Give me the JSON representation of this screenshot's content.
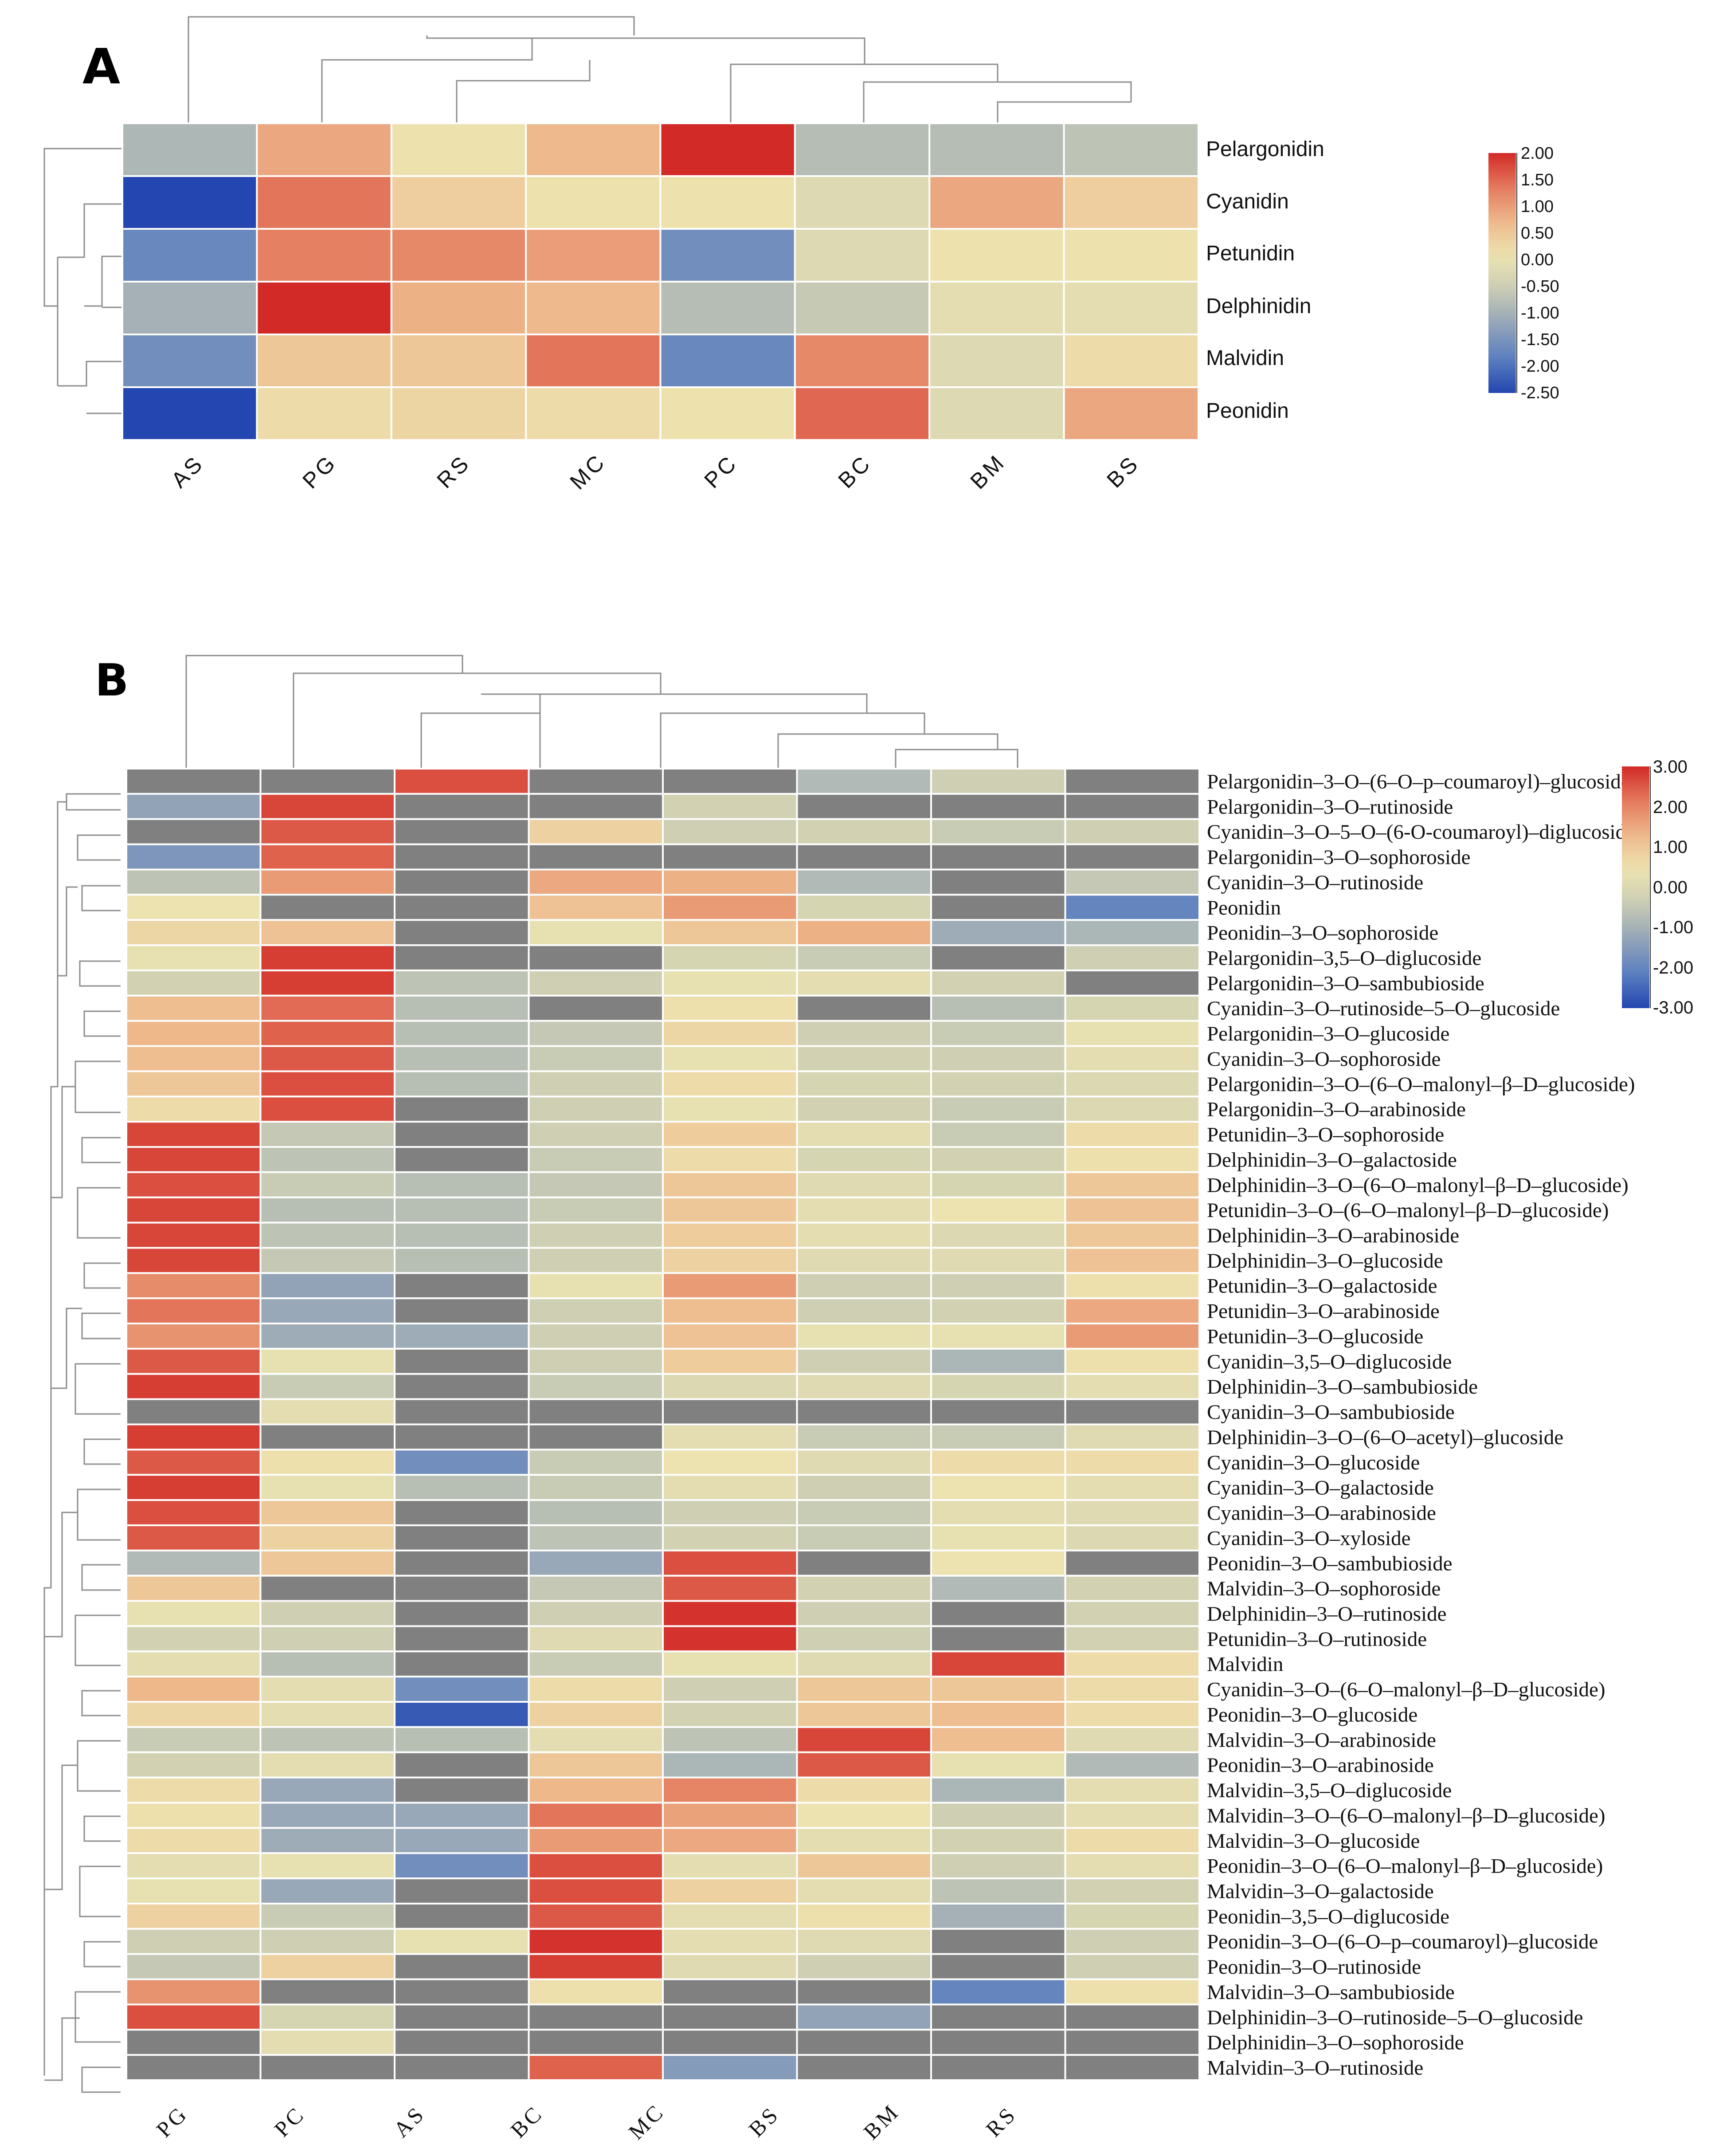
{
  "colors": {
    "missing": "#808080",
    "scale": [
      "#2346b0",
      "#5b7fbf",
      "#93a4b8",
      "#c8cbb4",
      "#ede4b0",
      "#eeb98c",
      "#e47a5e",
      "#d22a26"
    ]
  },
  "chart_data": [
    {
      "type": "heatmap",
      "panel": "A",
      "columns": [
        "AS",
        "PG",
        "RS",
        "MC",
        "PC",
        "BC",
        "BM",
        "BS"
      ],
      "rows": [
        "Pelargonidin",
        "Cyanidin",
        "Petunidin",
        "Delphinidin",
        "Malvidin",
        "Peonidin"
      ],
      "values": [
        [
          -0.9,
          0.9,
          0.1,
          0.7,
          2.0,
          -0.8,
          -0.8,
          -0.7
        ],
        [
          -2.5,
          1.4,
          0.4,
          0.1,
          0.1,
          -0.2,
          0.9,
          0.4
        ],
        [
          -1.7,
          1.3,
          1.2,
          1.0,
          -1.6,
          -0.2,
          0.1,
          0.1
        ],
        [
          -1.0,
          2.0,
          0.8,
          0.7,
          -0.8,
          -0.6,
          -0.1,
          -0.1
        ],
        [
          -1.6,
          0.5,
          0.5,
          1.4,
          -1.7,
          1.2,
          -0.2,
          0.2
        ],
        [
          -2.5,
          0.2,
          0.3,
          0.2,
          0.1,
          1.5,
          -0.2,
          0.9
        ]
      ],
      "colorbar": {
        "range": [
          -2.5,
          2.0
        ],
        "ticks": [
          "2.00",
          "1.50",
          "1.00",
          "0.50",
          "0.00",
          "-0.50",
          "-1.00",
          "-1.50",
          "-2.00",
          "-2.50"
        ]
      }
    },
    {
      "type": "heatmap",
      "panel": "B",
      "columns": [
        "PG",
        "PC",
        "AS",
        "BC",
        "MC",
        "BS",
        "BM",
        "RS"
      ],
      "rows": [
        "Pelargonidin–3–O–(6–O–p–coumaroyl)–glucoside",
        "Pelargonidin–3–O–rutinoside",
        "Cyanidin–3–O–5–O–(6-O-coumaroyl)–diglucoside",
        "Pelargonidin–3–O–sophoroside",
        "Cyanidin–3–O–rutinoside",
        "Peonidin",
        "Peonidin–3–O–sophoroside",
        "Pelargonidin–3,5–O–diglucoside",
        "Pelargonidin–3–O–sambubioside",
        "Cyanidin–3–O–rutinoside–5–O–glucoside",
        "Pelargonidin–3–O–glucoside",
        "Cyanidin–3–O–sophoroside",
        "Pelargonidin–3–O–(6–O–malonyl–β–D–glucoside)",
        "Pelargonidin–3–O–arabinoside",
        "Petunidin–3–O–sophoroside",
        "Delphinidin–3–O–galactoside",
        "Delphinidin–3–O–(6–O–malonyl–β–D–glucoside)",
        "Petunidin–3–O–(6–O–malonyl–β–D–glucoside)",
        "Delphinidin–3–O–arabinoside",
        "Delphinidin–3–O–glucoside",
        "Petunidin–3–O–galactoside",
        "Petunidin–3–O–arabinoside",
        "Petunidin–3–O–glucoside",
        "Cyanidin–3,5–O–diglucoside",
        "Delphinidin–3–O–sambubioside",
        "Cyanidin–3–O–sambubioside",
        "Delphinidin–3–O–(6–O–acetyl)–glucoside",
        "Cyanidin–3–O–glucoside",
        "Cyanidin–3–O–galactoside",
        "Cyanidin–3–O–arabinoside",
        "Cyanidin–3–O–xyloside",
        "Peonidin–3–O–sambubioside",
        "Malvidin–3–O–sophoroside",
        "Delphinidin–3–O–rutinoside",
        "Petunidin–3–O–rutinoside",
        "Malvidin",
        "Cyanidin–3–O–(6–O–malonyl–β–D–glucoside)",
        "Peonidin–3–O–glucoside",
        "Malvidin–3–O–arabinoside",
        "Peonidin–3–O–arabinoside",
        "Malvidin–3,5–O–diglucoside",
        "Malvidin–3–O–(6–O–malonyl–β–D–glucoside)",
        "Malvidin–3–O–glucoside",
        "Peonidin–3–O–(6–O–malonyl–β–D–glucoside)",
        "Malvidin–3–O–galactoside",
        "Peonidin–3,5–O–diglucoside",
        "Peonidin–3–O–(6–O–p–coumaroyl)–glucoside",
        "Peonidin–3–O–rutinoside",
        "Malvidin–3–O–sambubioside",
        "Delphinidin–3–O–rutinoside–5–O–glucoside",
        "Delphinidin–3–O–sophoroside",
        "Malvidin–3–O–rutinoside"
      ],
      "values": [
        [
          null,
          null,
          2.6,
          null,
          null,
          -0.8,
          -0.3,
          null
        ],
        [
          -1.3,
          2.7,
          null,
          null,
          -0.2,
          null,
          null,
          null
        ],
        [
          null,
          2.5,
          null,
          0.8,
          -0.3,
          -0.2,
          -0.4,
          -0.3
        ],
        [
          -1.6,
          2.4,
          null,
          null,
          null,
          null,
          null,
          null
        ],
        [
          -0.6,
          1.7,
          null,
          1.5,
          1.4,
          -0.8,
          null,
          -0.5
        ],
        [
          0.4,
          null,
          null,
          1.1,
          1.7,
          -0.1,
          null,
          -2.0
        ],
        [
          0.7,
          1.1,
          null,
          0.3,
          1.0,
          1.4,
          -1.1,
          -0.9
        ],
        [
          0.3,
          2.8,
          null,
          null,
          -0.1,
          -0.4,
          null,
          -0.3
        ],
        [
          -0.2,
          2.8,
          -0.6,
          -0.3,
          0.3,
          0.2,
          -0.2,
          null
        ],
        [
          1.2,
          2.3,
          -0.7,
          null,
          0.5,
          null,
          -0.7,
          -0.1
        ],
        [
          1.3,
          2.4,
          -0.7,
          -0.5,
          0.7,
          -0.3,
          -0.4,
          0.3
        ],
        [
          1.2,
          2.5,
          -0.7,
          -0.4,
          0.3,
          -0.2,
          -0.3,
          0.2
        ],
        [
          1.0,
          2.6,
          -0.7,
          -0.3,
          0.6,
          -0.1,
          -0.2,
          0.0
        ],
        [
          0.6,
          2.6,
          null,
          -0.3,
          0.3,
          -0.2,
          -0.4,
          0.0
        ],
        [
          2.7,
          -0.5,
          null,
          -0.3,
          0.9,
          0.2,
          -0.4,
          0.6
        ],
        [
          2.7,
          -0.6,
          null,
          -0.4,
          0.6,
          -0.1,
          -0.2,
          0.5
        ],
        [
          2.6,
          -0.4,
          -0.7,
          -0.5,
          1.0,
          0.1,
          -0.1,
          1.0
        ],
        [
          2.7,
          -0.7,
          -0.7,
          -0.4,
          1.0,
          0.2,
          0.4,
          1.1
        ],
        [
          2.7,
          -0.6,
          -0.7,
          -0.3,
          0.9,
          0.2,
          0.0,
          1.0
        ],
        [
          2.7,
          -0.5,
          -0.7,
          -0.3,
          0.8,
          0.1,
          0.1,
          1.1
        ],
        [
          1.9,
          -1.3,
          null,
          0.3,
          1.7,
          -0.3,
          -0.3,
          0.5
        ],
        [
          2.2,
          -1.2,
          null,
          -0.3,
          1.2,
          -0.3,
          -0.2,
          1.5
        ],
        [
          1.8,
          -1.1,
          -1.1,
          -0.3,
          1.1,
          0.3,
          0.3,
          1.7
        ],
        [
          2.5,
          0.3,
          null,
          -0.3,
          0.9,
          -0.3,
          -0.9,
          0.5
        ],
        [
          2.8,
          -0.4,
          null,
          -0.4,
          0.0,
          0.1,
          -0.1,
          0.2
        ],
        [
          null,
          0.2,
          null,
          null,
          null,
          null,
          null,
          null
        ],
        [
          2.8,
          null,
          null,
          null,
          0.2,
          -0.4,
          -0.4,
          0.1
        ],
        [
          2.5,
          0.5,
          -1.8,
          -0.4,
          0.4,
          0.1,
          0.6,
          0.6
        ],
        [
          2.8,
          0.3,
          -0.7,
          -0.4,
          0.2,
          -0.3,
          0.4,
          0.2
        ],
        [
          2.6,
          1.0,
          null,
          -0.7,
          -0.3,
          -0.4,
          0.2,
          0.1
        ],
        [
          2.5,
          0.8,
          null,
          -0.6,
          -0.2,
          -0.4,
          0.3,
          0.0
        ],
        [
          -0.8,
          1.0,
          null,
          -1.2,
          2.6,
          null,
          0.4,
          null
        ],
        [
          1.0,
          null,
          null,
          -0.5,
          2.5,
          -0.2,
          -0.8,
          -0.2
        ],
        [
          0.3,
          -0.3,
          null,
          -0.3,
          2.9,
          -0.3,
          null,
          -0.2
        ],
        [
          -0.2,
          -0.3,
          null,
          0.1,
          2.9,
          -0.3,
          null,
          -0.2
        ],
        [
          0.2,
          -0.7,
          null,
          -0.4,
          0.3,
          0.1,
          2.7,
          0.6
        ],
        [
          1.3,
          0.2,
          -1.8,
          0.6,
          -0.3,
          1.0,
          1.0,
          0.6
        ],
        [
          0.7,
          0.2,
          -2.7,
          0.8,
          -0.2,
          1.0,
          1.2,
          0.6
        ],
        [
          -0.4,
          -0.6,
          -0.7,
          0.2,
          -0.6,
          2.7,
          1.2,
          0.1
        ],
        [
          -0.2,
          0.2,
          null,
          1.0,
          -0.9,
          2.5,
          0.3,
          -0.8
        ],
        [
          0.6,
          -1.2,
          null,
          1.3,
          2.0,
          0.6,
          -0.9,
          0.2
        ],
        [
          0.5,
          -1.2,
          -1.2,
          2.2,
          1.6,
          0.4,
          -0.3,
          0.2
        ],
        [
          0.6,
          -1.1,
          -1.2,
          1.7,
          1.5,
          0.2,
          -0.2,
          0.6
        ],
        [
          0.2,
          0.3,
          -1.8,
          2.6,
          0.2,
          1.0,
          -0.3,
          0.2
        ],
        [
          0.3,
          -1.2,
          null,
          2.6,
          0.8,
          0.2,
          -0.6,
          -0.2
        ],
        [
          0.8,
          -0.4,
          null,
          2.5,
          0.2,
          0.5,
          -1.0,
          -0.1
        ],
        [
          -0.3,
          -0.3,
          0.3,
          2.9,
          0.2,
          0.1,
          null,
          -0.3
        ],
        [
          -0.5,
          0.8,
          null,
          2.8,
          0.1,
          -0.3,
          null,
          -0.3
        ],
        [
          1.8,
          null,
          null,
          0.5,
          null,
          null,
          -2.0,
          0.5
        ],
        [
          2.6,
          -0.1,
          null,
          null,
          null,
          -1.3,
          null,
          null
        ],
        [
          null,
          0.2,
          null,
          null,
          null,
          null,
          null,
          null
        ],
        [
          null,
          null,
          null,
          2.4,
          -1.5,
          null,
          null,
          null
        ]
      ],
      "colorbar": {
        "range": [
          -3.0,
          3.0
        ],
        "ticks": [
          "3.00",
          "2.00",
          "1.00",
          "0.00",
          "-1.00",
          "-2.00",
          "-3.00"
        ]
      }
    }
  ]
}
